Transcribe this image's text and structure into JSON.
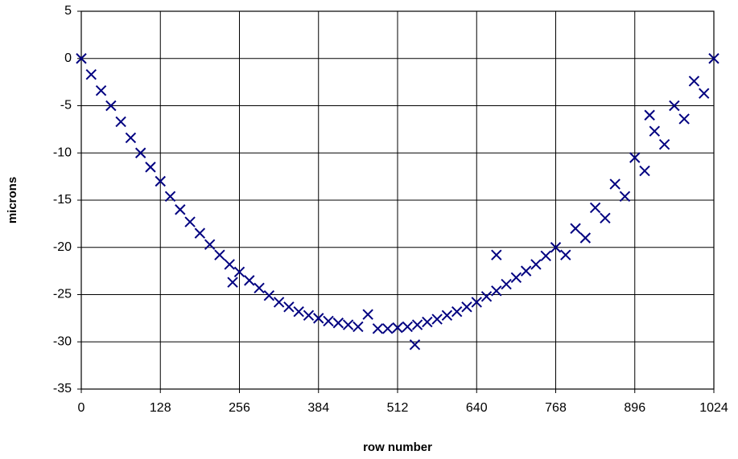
{
  "chart_data": {
    "type": "scatter",
    "x_label": "row number",
    "y_label": "microns",
    "xlim": [
      0,
      1024
    ],
    "xticks": [
      0,
      128,
      256,
      384,
      512,
      640,
      768,
      896,
      1024
    ],
    "ylim": [
      -35,
      5
    ],
    "yticks": [
      -35,
      -30,
      -25,
      -20,
      -15,
      -10,
      -5,
      0,
      5
    ],
    "grid": true,
    "marker": "x",
    "series": [
      {
        "color": "#000080",
        "x": [
          0,
          32,
          64,
          96,
          128,
          160,
          192,
          224,
          256,
          288,
          320,
          352,
          384,
          416,
          448,
          480,
          512,
          544,
          576,
          608,
          640,
          672,
          704,
          736,
          768,
          800,
          832,
          864,
          896,
          928,
          960,
          992,
          1024,
          672,
          784,
          920,
          540,
          464,
          245,
          16,
          48,
          80,
          112,
          144,
          176,
          208,
          240,
          272,
          304,
          336,
          368,
          400,
          432,
          496,
          528,
          560,
          592,
          624,
          656,
          688,
          720,
          752,
          816,
          848,
          880,
          912,
          944,
          976,
          1008
        ],
        "values": [
          0,
          -3.4,
          -6.7,
          -10,
          -13,
          -16,
          -18.5,
          -20.8,
          -22.6,
          -24.3,
          -25.8,
          -26.8,
          -27.5,
          -28,
          -28.4,
          -28.6,
          -28.5,
          -28.2,
          -27.6,
          -26.8,
          -25.8,
          -24.6,
          -23.2,
          -21.8,
          -20,
          -18,
          -15.8,
          -13.3,
          -10.5,
          -7.7,
          -5,
          -2.4,
          0,
          -20.8,
          -20.8,
          -6,
          -30.3,
          -27.1,
          -23.7,
          -1.7,
          -5,
          -8.4,
          -11.5,
          -14.6,
          -17.3,
          -19.7,
          -21.8,
          -23.5,
          -25.1,
          -26.3,
          -27.2,
          -27.8,
          -28.2,
          -28.6,
          -28.4,
          -27.9,
          -27.2,
          -26.3,
          -25.2,
          -23.9,
          -22.5,
          -20.9,
          -19,
          -16.9,
          -14.6,
          -11.9,
          -9.1,
          -6.4,
          -3.7
        ]
      }
    ]
  }
}
